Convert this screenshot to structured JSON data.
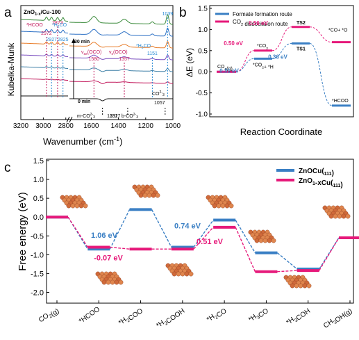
{
  "panel_labels": [
    "a",
    "b",
    "c"
  ],
  "chart_data": [
    {
      "panel": "a",
      "type": "line",
      "sample_label": "ZnO",
      "sample_sub": "1-x",
      "sample_suffix": "/Cu-100",
      "xlabel_pre": "Wavenumber (cm",
      "xlabel_sup": "-1",
      "xlabel_post": ")",
      "ylabel": "Kubelka-Munk",
      "xlim": [
        3200,
        1000
      ],
      "x_axis_break": [
        2780,
        1760
      ],
      "xticks": [
        3200,
        3000,
        2800,
        1600,
        1400,
        1200,
        1000
      ],
      "time_labels": [
        "30 min",
        "0 min"
      ],
      "series_colors": [
        "#3a8a3a",
        "#2a6fc4",
        "#e87d2a",
        "#7a4dbf",
        "#3d7fa6",
        "#c2185b",
        "#111111"
      ],
      "peaks": [
        {
          "text": "*HCOO",
          "x": 3010,
          "color": "#c2185b",
          "line": false
        },
        {
          "text": "2972",
          "x": 2972,
          "color": "#c2185b",
          "line": true
        },
        {
          "text": "2873",
          "x": 2873,
          "color": "#c2185b",
          "line": true
        },
        {
          "text": "*H2CO",
          "x": 2830,
          "color": "#2a8ad4",
          "line": false
        },
        {
          "text": "2927",
          "x": 2927,
          "color": "#2a8ad4",
          "line": true
        },
        {
          "text": "2825",
          "x": 2825,
          "color": "#2a8ad4",
          "line": true
        },
        {
          "text": "1580",
          "x": 1580,
          "color": "#c2185b",
          "line": true
        },
        {
          "text": "1357",
          "x": 1357,
          "color": "#c2185b",
          "line": true
        },
        {
          "text": "1151",
          "x": 1151,
          "color": "#2a8ad4",
          "line": true
        },
        {
          "text": "1039",
          "x": 1039,
          "color": "#2a8ad4",
          "line": true
        },
        {
          "text": "1517",
          "x": 1517,
          "color": "#111111",
          "line": true
        },
        {
          "text": "1332",
          "x": 1332,
          "color": "#111111",
          "line": true
        },
        {
          "text": "1057",
          "x": 1057,
          "color": "#111111",
          "line": true
        }
      ],
      "annotations": [
        {
          "text": "νas(OCO)",
          "color": "#c2185b"
        },
        {
          "text": "νs(OCO)",
          "color": "#c2185b"
        },
        {
          "text": "*H3CO",
          "color": "#2a8ad4"
        },
        {
          "text": "m-CO32-",
          "color": "#111111"
        },
        {
          "text": "b-CO32-",
          "color": "#111111"
        },
        {
          "text": "CO32-",
          "color": "#111111"
        }
      ]
    },
    {
      "panel": "b",
      "type": "line",
      "ylabel": "ΔE (eV)",
      "xlabel": "Reaction Coordinate",
      "ylim": [
        -1.0,
        1.5
      ],
      "yticks": [
        -1.0,
        -0.5,
        0.0,
        0.5,
        1.0,
        1.5
      ],
      "legend": {
        "placement": "top-left"
      },
      "series": [
        {
          "name": "Formate formation route",
          "color": "#3a7fc4",
          "levels": [
            0.0,
            0.31,
            0.67,
            -0.8
          ],
          "level_labels": [
            "CO2(g)",
            "*CO2+ *H",
            "TS1",
            "*HCOO"
          ]
        },
        {
          "name": "CO2 dissociation route",
          "color": "#e6197a",
          "levels": [
            0.0,
            0.5,
            1.06,
            0.7
          ],
          "level_labels": [
            "CO2(g)",
            "*CO2",
            "TS2",
            "*CO+ *O"
          ]
        }
      ],
      "barriers": [
        {
          "text": "0.50 eV",
          "color": "#e6197a"
        },
        {
          "text": "0.56 eV",
          "color": "#e6197a"
        },
        {
          "text": "0.31 eV",
          "color": "#3a7fc4"
        },
        {
          "text": "0.36 eV",
          "color": "#3a7fc4"
        }
      ]
    },
    {
      "panel": "c",
      "type": "line",
      "ylabel": "Free energy (eV)",
      "ylim": [
        -2.25,
        1.5
      ],
      "yticks": [
        -2.0,
        -1.5,
        -1.0,
        -0.5,
        0.0,
        0.5,
        1.0,
        1.5
      ],
      "legend": {
        "placement": "top-right"
      },
      "categories": [
        "CO2(g)",
        "*HCOO",
        "*H2COO",
        "*H2COOH",
        "*H2CO",
        "*H3CO",
        "*H3COH",
        "CH3OH(g)"
      ],
      "series": [
        {
          "name": "ZnO/Cu(111)",
          "color": "#3a7fc4",
          "values": [
            0.0,
            -0.85,
            0.2,
            -0.8,
            -0.08,
            -0.95,
            -1.38,
            -0.55
          ]
        },
        {
          "name": "ZnO1-x/Cu(111)",
          "color": "#e6197a",
          "values": [
            0.0,
            -0.8,
            -0.85,
            -0.85,
            -0.27,
            -1.45,
            -1.42,
            -0.55
          ]
        }
      ],
      "annotations": [
        {
          "text": "1.06 eV",
          "color": "#3a7fc4"
        },
        {
          "text": "-0.07 eV",
          "color": "#e6197a"
        },
        {
          "text": "0.74 eV",
          "color": "#3a7fc4"
        },
        {
          "text": "0.51 eV",
          "color": "#e6197a"
        }
      ]
    }
  ]
}
